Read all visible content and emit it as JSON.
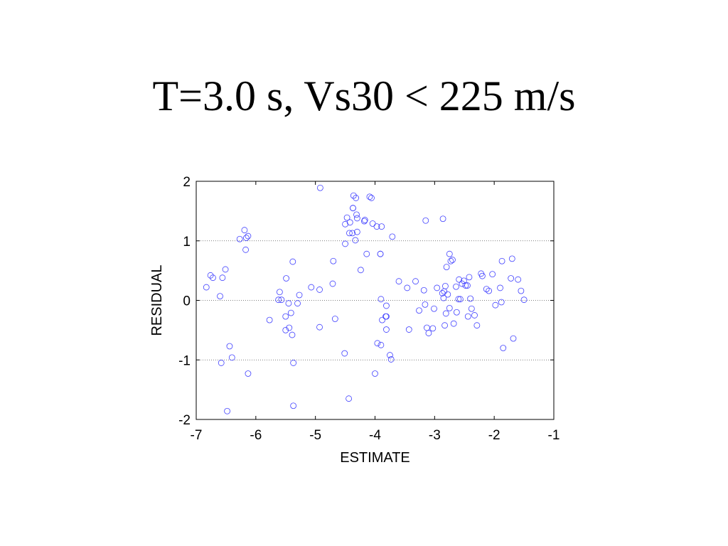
{
  "slide": {
    "title": "T=3.0 s, Vs30 < 225 m/s"
  },
  "chart_data": {
    "type": "scatter",
    "title": "",
    "xlabel": "ESTIMATE",
    "ylabel": "RESIDUAL",
    "xlim": [
      -7,
      -1
    ],
    "ylim": [
      -2,
      2
    ],
    "xticks": [
      -7,
      -6,
      -5,
      -4,
      -3,
      -2,
      -1
    ],
    "yticks": [
      -2,
      -1,
      0,
      1,
      2
    ],
    "grid": "dotted horizontal lines at y = -1, 0, 1",
    "gridlines_y": [
      -1,
      0,
      1
    ],
    "marker": "open circle",
    "marker_color": "#4040ff",
    "grid_color": "#555555",
    "points": [
      [
        -6.83,
        0.22
      ],
      [
        -6.76,
        0.42
      ],
      [
        -6.72,
        0.38
      ],
      [
        -6.6,
        0.07
      ],
      [
        -6.58,
        -1.05
      ],
      [
        -6.56,
        0.38
      ],
      [
        -6.51,
        0.52
      ],
      [
        -6.48,
        -1.86
      ],
      [
        -6.44,
        -0.77
      ],
      [
        -6.4,
        -0.96
      ],
      [
        -6.27,
        1.03
      ],
      [
        -6.19,
        1.18
      ],
      [
        -6.17,
        0.85
      ],
      [
        -6.16,
        1.05
      ],
      [
        -6.13,
        -1.23
      ],
      [
        -6.13,
        1.08
      ],
      [
        -5.77,
        -0.33
      ],
      [
        -5.62,
        0.01
      ],
      [
        -5.6,
        0.14
      ],
      [
        -5.57,
        0.01
      ],
      [
        -5.5,
        -0.5
      ],
      [
        -5.5,
        -0.27
      ],
      [
        -5.49,
        0.37
      ],
      [
        -5.45,
        -0.05
      ],
      [
        -5.44,
        -0.46
      ],
      [
        -5.41,
        -0.21
      ],
      [
        -5.39,
        -0.58
      ],
      [
        -5.38,
        0.65
      ],
      [
        -5.37,
        -1.05
      ],
      [
        -5.37,
        -1.77
      ],
      [
        -5.3,
        -0.05
      ],
      [
        -5.27,
        0.09
      ],
      [
        -5.07,
        0.22
      ],
      [
        -4.93,
        -0.45
      ],
      [
        -4.93,
        0.18
      ],
      [
        -4.92,
        1.89
      ],
      [
        -4.71,
        0.28
      ],
      [
        -4.7,
        0.66
      ],
      [
        -4.67,
        -0.31
      ],
      [
        -4.51,
        -0.89
      ],
      [
        -4.5,
        1.28
      ],
      [
        -4.5,
        0.95
      ],
      [
        -4.47,
        1.39
      ],
      [
        -4.44,
        -1.65
      ],
      [
        -4.43,
        1.13
      ],
      [
        -4.42,
        1.31
      ],
      [
        -4.38,
        1.13
      ],
      [
        -4.37,
        1.55
      ],
      [
        -4.37,
        1.55
      ],
      [
        -4.36,
        1.76
      ],
      [
        -4.33,
        1.01
      ],
      [
        -4.32,
        1.72
      ],
      [
        -4.31,
        1.44
      ],
      [
        -4.3,
        1.15
      ],
      [
        -4.3,
        1.38
      ],
      [
        -4.24,
        0.51
      ],
      [
        -4.18,
        1.33
      ],
      [
        -4.17,
        1.35
      ],
      [
        -4.14,
        0.78
      ],
      [
        -4.09,
        1.74
      ],
      [
        -4.06,
        1.72
      ],
      [
        -4.04,
        1.29
      ],
      [
        -4.0,
        -1.23
      ],
      [
        -3.97,
        1.24
      ],
      [
        -3.96,
        -0.72
      ],
      [
        -3.91,
        0.78
      ],
      [
        -3.91,
        0.78
      ],
      [
        -3.9,
        0.02
      ],
      [
        -3.9,
        -0.75
      ],
      [
        -3.89,
        1.24
      ],
      [
        -3.88,
        -0.33
      ],
      [
        -3.82,
        -0.27
      ],
      [
        -3.81,
        -0.09
      ],
      [
        -3.81,
        -0.49
      ],
      [
        -3.81,
        -0.27
      ],
      [
        -3.75,
        -0.92
      ],
      [
        -3.73,
        -0.99
      ],
      [
        -3.71,
        1.07
      ],
      [
        -3.6,
        0.32
      ],
      [
        -3.46,
        0.21
      ],
      [
        -3.43,
        -0.49
      ],
      [
        -3.32,
        0.32
      ],
      [
        -3.26,
        -0.17
      ],
      [
        -3.18,
        0.17
      ],
      [
        -3.16,
        -0.07
      ],
      [
        -3.15,
        1.34
      ],
      [
        -3.13,
        -0.46
      ],
      [
        -3.1,
        -0.55
      ],
      [
        -3.03,
        -0.47
      ],
      [
        -3.01,
        -0.14
      ],
      [
        -2.96,
        0.21
      ],
      [
        -2.87,
        0.12
      ],
      [
        -2.86,
        1.37
      ],
      [
        -2.85,
        0.04
      ],
      [
        -2.84,
        0.15
      ],
      [
        -2.83,
        -0.42
      ],
      [
        -2.82,
        0.24
      ],
      [
        -2.81,
        -0.22
      ],
      [
        -2.8,
        0.56
      ],
      [
        -2.78,
        0.1
      ],
      [
        -2.75,
        -0.13
      ],
      [
        -2.75,
        0.78
      ],
      [
        -2.73,
        0.66
      ],
      [
        -2.7,
        0.68
      ],
      [
        -2.68,
        -0.39
      ],
      [
        -2.64,
        0.23
      ],
      [
        -2.63,
        -0.2
      ],
      [
        -2.6,
        0.02
      ],
      [
        -2.59,
        0.35
      ],
      [
        -2.57,
        0.02
      ],
      [
        -2.54,
        0.28
      ],
      [
        -2.51,
        0.33
      ],
      [
        -2.48,
        0.25
      ],
      [
        -2.45,
        0.25
      ],
      [
        -2.44,
        -0.27
      ],
      [
        -2.42,
        0.39
      ],
      [
        -2.4,
        0.03
      ],
      [
        -2.38,
        -0.14
      ],
      [
        -2.33,
        -0.25
      ],
      [
        -2.29,
        -0.42
      ],
      [
        -2.22,
        0.45
      ],
      [
        -2.2,
        0.41
      ],
      [
        -2.13,
        0.19
      ],
      [
        -2.09,
        0.16
      ],
      [
        -2.03,
        0.44
      ],
      [
        -1.98,
        -0.08
      ],
      [
        -1.9,
        0.21
      ],
      [
        -1.88,
        -0.03
      ],
      [
        -1.87,
        0.66
      ],
      [
        -1.85,
        -0.8
      ],
      [
        -1.72,
        0.37
      ],
      [
        -1.7,
        0.7
      ],
      [
        -1.68,
        -0.64
      ],
      [
        -1.6,
        0.35
      ],
      [
        -1.55,
        0.16
      ],
      [
        -1.5,
        0.01
      ]
    ]
  }
}
